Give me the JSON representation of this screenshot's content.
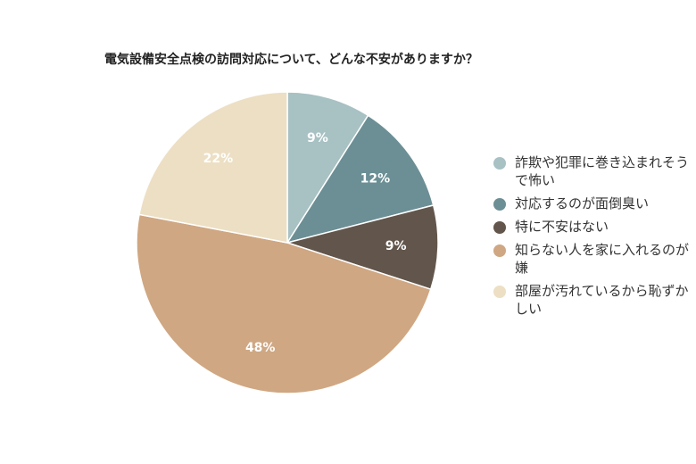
{
  "chart_data": {
    "type": "pie",
    "title": "電気設備安全点検の訪問対応について、どんな不安がありますか？",
    "categories": [
      "詐欺や犯罪に巻き込まれそうで怖い",
      "対応するのが面倒臭い",
      "特に不安はない",
      "知らない人を家に入れるのが嫌",
      "部屋が汚れているから恥ずかしい"
    ],
    "values": [
      9,
      12,
      9,
      48,
      22
    ],
    "value_labels": [
      "9%",
      "12%",
      "9%",
      "48%",
      "22%"
    ],
    "colors": [
      "#a8c1c3",
      "#6b8f95",
      "#62564c",
      "#cfa782",
      "#eddfc4"
    ],
    "legend_position": "right",
    "start_angle": "top, clockwise"
  }
}
